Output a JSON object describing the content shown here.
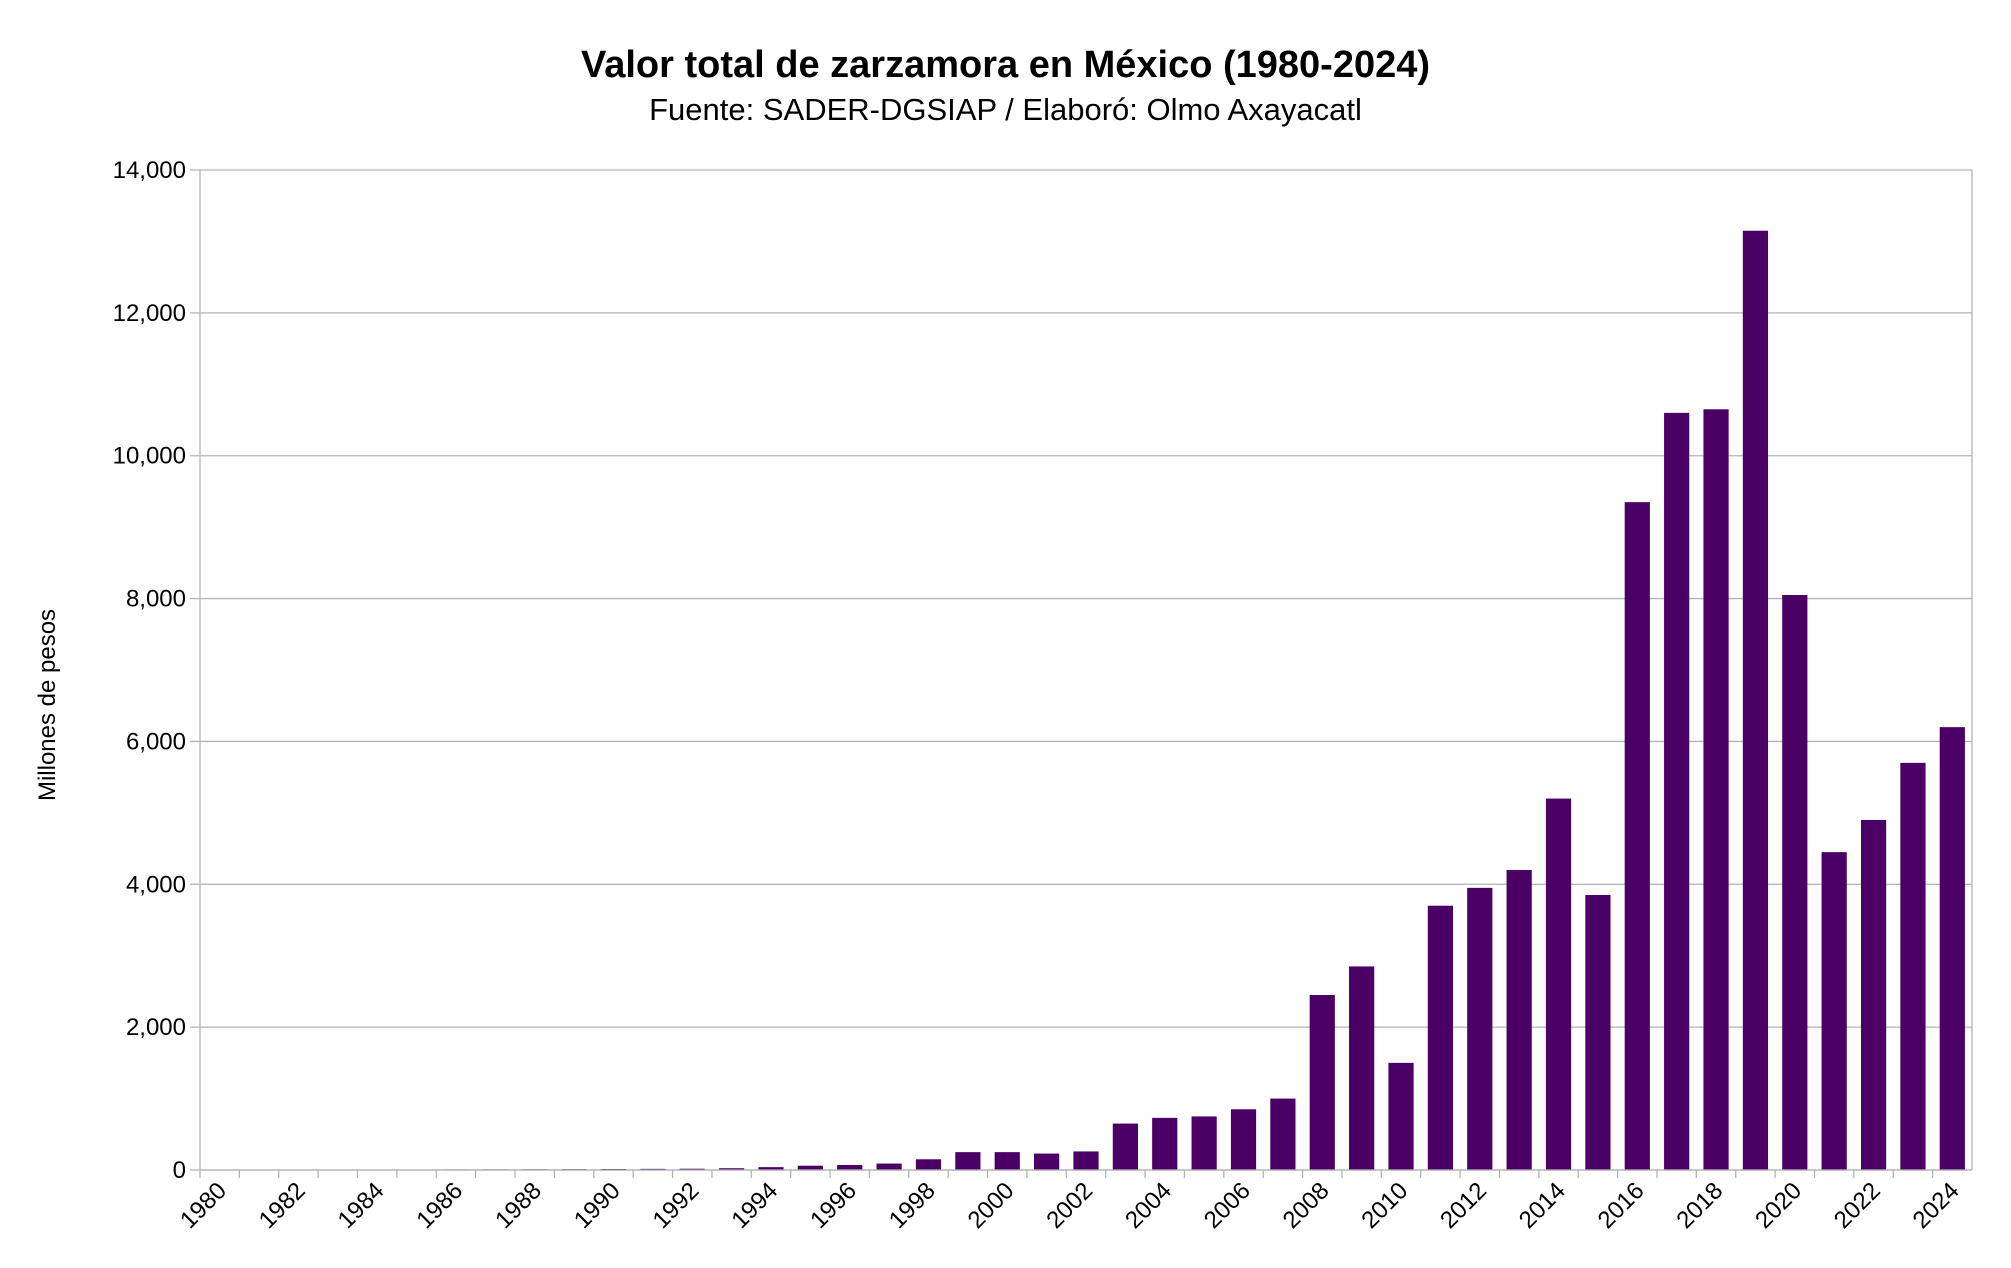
{
  "chart_data": {
    "type": "bar",
    "title": "Valor total de zarzamora en México (1980-2024)",
    "subtitle": "Fuente: SADER-DGSIAP / Elaboró: Olmo Axayacatl",
    "xlabel": "",
    "ylabel": "Millones de pesos",
    "ylim": [
      0,
      14000
    ],
    "yticks": [
      "0",
      "2,000",
      "4,000",
      "6,000",
      "8,000",
      "10,000",
      "12,000",
      "14,000"
    ],
    "grid": true,
    "legend": "none",
    "bar_color": "#4b0066",
    "categories": [
      "1980",
      "1981",
      "1982",
      "1983",
      "1984",
      "1985",
      "1986",
      "1987",
      "1988",
      "1989",
      "1990",
      "1991",
      "1992",
      "1993",
      "1994",
      "1995",
      "1996",
      "1997",
      "1998",
      "1999",
      "2000",
      "2001",
      "2002",
      "2003",
      "2004",
      "2005",
      "2006",
      "2007",
      "2008",
      "2009",
      "2010",
      "2011",
      "2012",
      "2013",
      "2014",
      "2015",
      "2016",
      "2017",
      "2018",
      "2019",
      "2020",
      "2021",
      "2022",
      "2023",
      "2024"
    ],
    "xtick_labels": [
      "1980",
      "1982",
      "1984",
      "1986",
      "1988",
      "1990",
      "1992",
      "1994",
      "1996",
      "1998",
      "2000",
      "2002",
      "2004",
      "2006",
      "2008",
      "2010",
      "2012",
      "2014",
      "2016",
      "2018",
      "2020",
      "2022",
      "2024"
    ],
    "values": [
      2,
      3,
      4,
      5,
      6,
      7,
      8,
      9,
      10,
      12,
      14,
      16,
      18,
      25,
      40,
      60,
      70,
      90,
      150,
      250,
      250,
      230,
      260,
      650,
      730,
      750,
      850,
      1000,
      2450,
      2850,
      1500,
      3700,
      3950,
      4200,
      5200,
      3850,
      9350,
      10600,
      10650,
      13150,
      8050,
      4450,
      4900,
      5700,
      6200
    ]
  }
}
